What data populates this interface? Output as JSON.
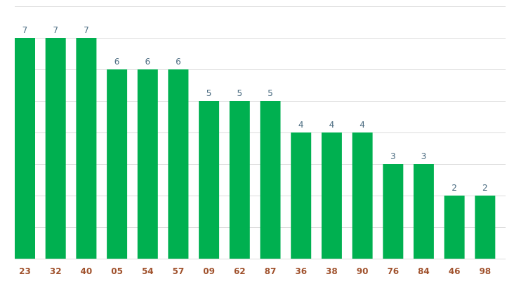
{
  "chart_data": {
    "type": "bar",
    "categories": [
      "23",
      "32",
      "40",
      "05",
      "54",
      "57",
      "09",
      "62",
      "87",
      "36",
      "38",
      "90",
      "76",
      "84",
      "46",
      "98"
    ],
    "values": [
      7,
      7,
      7,
      6,
      6,
      6,
      5,
      5,
      5,
      4,
      4,
      4,
      3,
      3,
      2,
      2
    ],
    "title": "",
    "xlabel": "",
    "ylabel": "",
    "ylim": [
      0,
      8
    ],
    "grid": true,
    "colors": {
      "bar": "#00b050",
      "grid": "#dcdcdc",
      "data_label": "#4f6f84",
      "category_label": "#a0522d"
    }
  }
}
